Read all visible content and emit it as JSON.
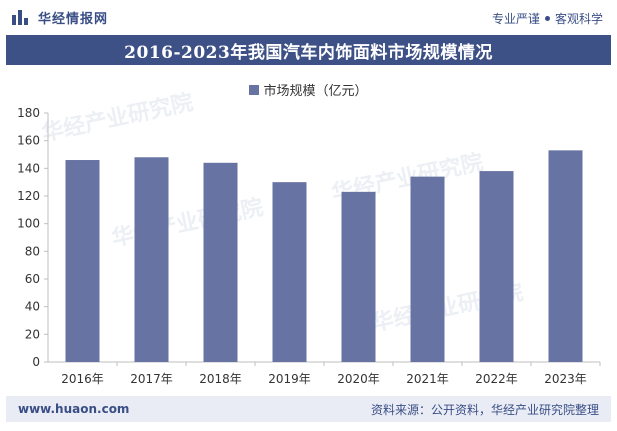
{
  "header": {
    "brand": "华经情报网",
    "slogan_left": "专业严谨",
    "slogan_right": "客观科学"
  },
  "title": "2016-2023年我国汽车内饰面料市场规模情况",
  "chart_data": {
    "type": "bar",
    "title": "2016-2023年我国汽车内饰面料市场规模情况",
    "categories": [
      "2016年",
      "2017年",
      "2018年",
      "2019年",
      "2020年",
      "2021年",
      "2022年",
      "2023年"
    ],
    "series": [
      {
        "name": "市场规模（亿元）",
        "values": [
          146,
          148,
          144,
          130,
          123,
          134,
          138,
          153
        ]
      }
    ],
    "ylim": [
      0,
      180
    ],
    "yticks": [
      0,
      20,
      40,
      60,
      80,
      100,
      120,
      140,
      160,
      180
    ],
    "xlabel": "",
    "ylabel": "",
    "legend_position": "top-center",
    "grid": false,
    "bar_color": "#6673a3"
  },
  "watermarks": [
    "华经产业研究院",
    "华经产业研究院",
    "华经产业研究院",
    "华经产业研究院"
  ],
  "footer": {
    "url": "www.huaon.com",
    "source": "资料来源：公开资料，华经产业研究院整理"
  }
}
